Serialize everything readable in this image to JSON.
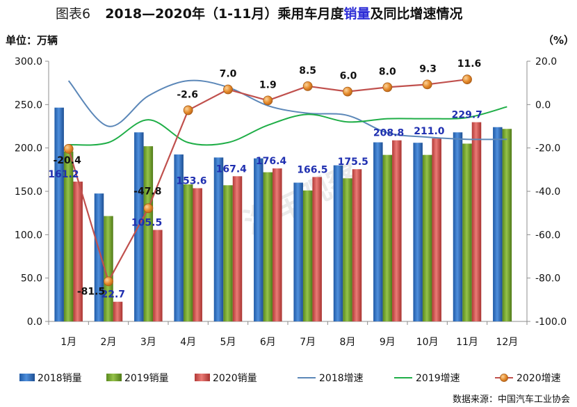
{
  "title": {
    "figure": "图表6",
    "prefix": "2018—2020年（1-11月）乘用车月度",
    "highlight": "销量",
    "suffix": "及同比增速情况"
  },
  "left_unit": "单位：万辆",
  "right_unit": "（%）",
  "source": "数据来源：中国汽车工业协会",
  "watermark": "汽车观察",
  "colors": {
    "2018销量": "#2e6fc0",
    "2019销量": "#6f9e2c",
    "2020销量": "#d2504c",
    "2018增速": "#5b87b8",
    "2019增速": "#1fae47",
    "2020增速": "#d8811f"
  },
  "chart_data": {
    "type": "bar",
    "categories": [
      "1月",
      "2月",
      "3月",
      "4月",
      "5月",
      "6月",
      "7月",
      "8月",
      "9月",
      "10月",
      "11月",
      "12月"
    ],
    "ylim": [
      0,
      300
    ],
    "yticks": [
      "300.0",
      "250.0",
      "200.0",
      "150.0",
      "100.0",
      "50.0",
      "0.0"
    ],
    "y2lim": [
      -100,
      20
    ],
    "y2ticks": [
      "20.0",
      "0.0",
      "-20.0",
      "-40.0",
      "-60.0",
      "-80.0",
      "-100.0"
    ],
    "bar_series": [
      {
        "name": "2018销量",
        "values": [
          246.5,
          147.5,
          218.0,
          192.5,
          189.0,
          188.0,
          160.0,
          180.0,
          206.5,
          206.0,
          218.0,
          224.0
        ]
      },
      {
        "name": "2019销量",
        "values": [
          196.0,
          121.5,
          202.0,
          158.0,
          157.0,
          172.0,
          151.0,
          165.0,
          192.0,
          192.0,
          205.0,
          222.0
        ]
      },
      {
        "name": "2020销量",
        "values": [
          161.2,
          22.7,
          105.5,
          153.6,
          167.4,
          176.4,
          166.5,
          175.5,
          208.8,
          211.0,
          229.7,
          null
        ]
      }
    ],
    "bar_labels": [
      "161.2",
      "22.7",
      "105.5",
      "153.6",
      "167.4",
      "176.4",
      "166.5",
      "175.5",
      "208.8",
      "211.0",
      "229.7"
    ],
    "line_series": [
      {
        "name": "2018增速",
        "values": [
          11.0,
          -10.0,
          4.0,
          11.0,
          8.0,
          -0.5,
          -4.0,
          -5.0,
          -13.0,
          -15.0,
          -16.0,
          -16.0
        ]
      },
      {
        "name": "2019增速",
        "values": [
          -18.5,
          -17.5,
          -7.0,
          -17.5,
          -17.5,
          -9.5,
          -4.5,
          -8.0,
          -6.5,
          -6.5,
          -6.0,
          -1.0
        ]
      },
      {
        "name": "2020增速",
        "values": [
          -20.4,
          -81.5,
          -47.8,
          -2.6,
          7.0,
          1.9,
          8.5,
          6.0,
          8.0,
          9.3,
          11.6,
          null
        ]
      }
    ],
    "line_labels": [
      "-20.4",
      "-81.5",
      "-47.8",
      "-2.6",
      "7.0",
      "1.9",
      "8.5",
      "6.0",
      "8.0",
      "9.3",
      "11.6"
    ],
    "legend": [
      "2018销量",
      "2019销量",
      "2020销量",
      "2018增速",
      "2019增速",
      "2020增速"
    ],
    "legend_position": "bottom",
    "grid": false
  }
}
